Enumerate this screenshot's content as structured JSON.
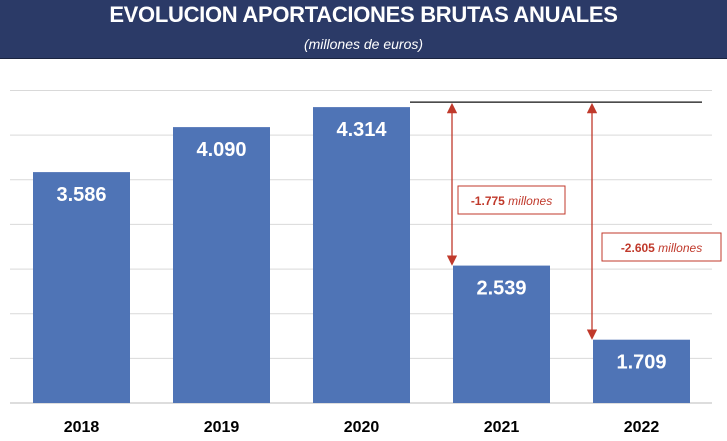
{
  "chart_data": {
    "type": "bar",
    "title": "EVOLUCION APORTACIONES BRUTAS ANUALES",
    "subtitle": "(millones de euros)",
    "categories": [
      "2018",
      "2019",
      "2020",
      "2021",
      "2022"
    ],
    "values": [
      3586,
      4090,
      4314,
      2539,
      1709
    ],
    "data_labels": [
      "3.586",
      "4.090",
      "4.314",
      "2.539",
      "1.709"
    ],
    "ylim": [
      1000,
      4500
    ],
    "grid": true,
    "bar_color": "#4f74b6",
    "annotations": [
      {
        "from": "2020",
        "to": "2021",
        "value": "-1.775",
        "unit": "millones",
        "color": "#c0392b"
      },
      {
        "from": "2020",
        "to": "2022",
        "value": "-2.605",
        "unit": "millones",
        "color": "#c0392b"
      }
    ]
  }
}
